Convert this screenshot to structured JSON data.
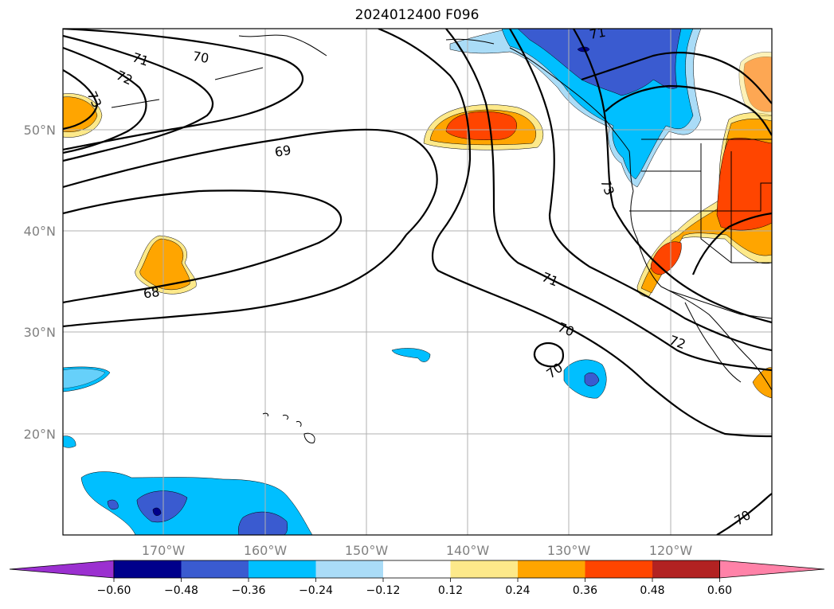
{
  "title": "2024012400 F096",
  "lat_labels": [
    "50°N",
    "40°N",
    "30°N",
    "20°N"
  ],
  "lon_labels": [
    "170°W",
    "160°W",
    "150°W",
    "140°W",
    "130°W",
    "120°W"
  ],
  "contour_labels": [
    "71",
    "70",
    "72",
    "73",
    "69",
    "68",
    "71",
    "70",
    "70",
    "72",
    "73",
    "70",
    "71"
  ],
  "colorbar": {
    "tick_labels": [
      "−0.60",
      "−0.48",
      "−0.36",
      "−0.24",
      "−0.12",
      "0.12",
      "0.24",
      "0.36",
      "0.48",
      "0.60"
    ],
    "colors": [
      "#9b30d0",
      "#00008b",
      "#3a5bd0",
      "#00bfff",
      "#aadcf7",
      "#ffffff",
      "#fde98a",
      "#ffa500",
      "#ff4500",
      "#b22222",
      "#ff82a8"
    ]
  },
  "colors": {
    "pos_low": "#fde98a",
    "pos_mid": "#ffa500",
    "pos_high": "#ff4500",
    "neg_low": "#aadcf7",
    "neg_mid": "#00bfff",
    "neg_high": "#3a5bd0",
    "neg_max": "#00008b",
    "grid": "#b0b0b0"
  }
}
